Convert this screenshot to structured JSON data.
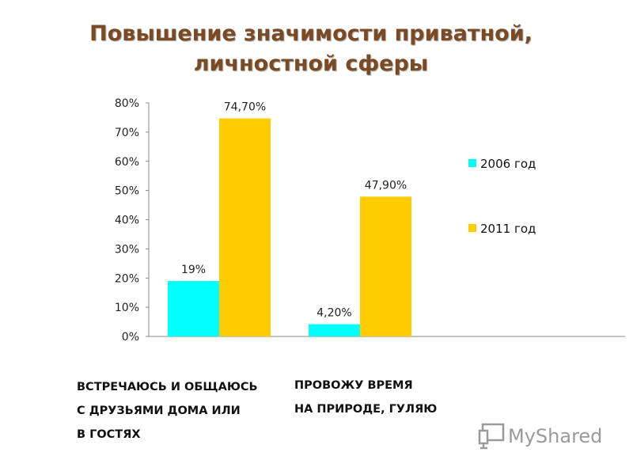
{
  "page": {
    "title_line1": "Повышение значимости приватной,",
    "title_line2": "личностной сферы"
  },
  "category_labels": [
    [
      "ВСТРЕЧАЮСЬ И ОБЩАЮСЬ",
      "С ДРУЗЬЯМИ ДОМА ИЛИ",
      "В ГОСТЯХ"
    ],
    [
      "ПРОВОЖУ ВРЕМЯ",
      "НА ПРИРОДЕ, ГУЛЯЮ"
    ]
  ],
  "watermark": {
    "text": "MyShared"
  },
  "chart_data": {
    "type": "bar",
    "title": "Повышение значимости приватной, личностной сферы",
    "categories": [
      "ВСТРЕЧАЮСЬ И ОБЩАЮСЬ С ДРУЗЬЯМИ ДОМА ИЛИ В ГОСТЯХ",
      "ПРОВОЖУ ВРЕМЯ НА ПРИРОДЕ, ГУЛЯЮ"
    ],
    "series": [
      {
        "name": "2006 год",
        "color": "#00ffff",
        "values": [
          19,
          4.2
        ],
        "labels": [
          "19%",
          "4,20%"
        ]
      },
      {
        "name": "2011 год",
        "color": "#ffcc00",
        "values": [
          74.7,
          47.9
        ],
        "labels": [
          "74,70%",
          "47,90%"
        ]
      }
    ],
    "ylim": [
      0,
      80
    ],
    "yticks": [
      0,
      10,
      20,
      30,
      40,
      50,
      60,
      70,
      80
    ],
    "ytick_labels": [
      "0%",
      "10%",
      "20%",
      "30%",
      "40%",
      "50%",
      "60%",
      "70%",
      "80%"
    ],
    "xlabel": "",
    "ylabel": "",
    "grid": false,
    "legend_position": "right"
  }
}
